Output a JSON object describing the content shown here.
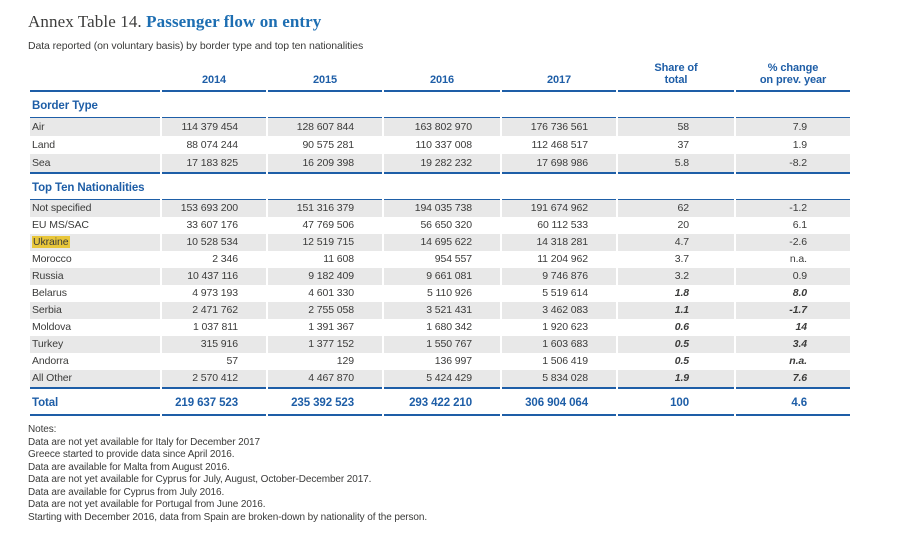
{
  "header": {
    "title_prefix": "Annex Table 14.",
    "title_main": "Passenger flow on entry",
    "subtitle": "Data reported (on voluntary basis) by border type and top ten nationalities"
  },
  "table": {
    "year_columns": [
      "2014",
      "2015",
      "2016",
      "2017"
    ],
    "share_header": {
      "line1": "Share of",
      "line2": "total"
    },
    "change_header": {
      "line1": "% change",
      "line2": "on prev. year"
    },
    "sections": [
      {
        "title": "Border Type",
        "rows": [
          {
            "label": "Air",
            "values": [
              "114 379 454",
              "128 607 844",
              "163 802 970",
              "176 736 561"
            ],
            "share": "58",
            "change": "7.9"
          },
          {
            "label": "Land",
            "values": [
              "88 074 244",
              "90 575 281",
              "110 337 008",
              "112 468 517"
            ],
            "share": "37",
            "change": "1.9"
          },
          {
            "label": "Sea",
            "values": [
              "17 183 825",
              "16 209 398",
              "19 282 232",
              "17 698 986"
            ],
            "share": "5.8",
            "change": "-8.2"
          }
        ]
      },
      {
        "title": "Top Ten Nationalities",
        "rows": [
          {
            "label": "Not specified",
            "values": [
              "153 693 200",
              "151 316 379",
              "194 035 738",
              "191 674 962"
            ],
            "share": "62",
            "change": "-1.2"
          },
          {
            "label": "EU MS/SAC",
            "values": [
              "33 607 176",
              "47 769 506",
              "56 650 320",
              "60 112 533"
            ],
            "share": "20",
            "change": "6.1"
          },
          {
            "label": "Ukraine",
            "values": [
              "10 528 534",
              "12 519 715",
              "14 695 622",
              "14 318 281"
            ],
            "share": "4.7",
            "change": "-2.6",
            "highlight": true
          },
          {
            "label": "Morocco",
            "values": [
              "2 346",
              "11 608",
              "954 557",
              "11 204 962"
            ],
            "share": "3.7",
            "change": "n.a."
          },
          {
            "label": "Russia",
            "values": [
              "10 437 116",
              "9 182 409",
              "9 661 081",
              "9 746 876"
            ],
            "share": "3.2",
            "change": "0.9"
          },
          {
            "label": "Belarus",
            "values": [
              "4 973 193",
              "4 601 330",
              "5 110 926",
              "5 519 614"
            ],
            "share": "1.8",
            "change": "8.0",
            "em": true
          },
          {
            "label": "Serbia",
            "values": [
              "2 471 762",
              "2 755 058",
              "3 521 431",
              "3 462 083"
            ],
            "share": "1.1",
            "change": "-1.7",
            "em": true
          },
          {
            "label": "Moldova",
            "values": [
              "1 037 811",
              "1 391 367",
              "1 680 342",
              "1 920 623"
            ],
            "share": "0.6",
            "change": "14",
            "em": true
          },
          {
            "label": "Turkey",
            "values": [
              "315 916",
              "1 377 152",
              "1 550 767",
              "1 603 683"
            ],
            "share": "0.5",
            "change": "3.4",
            "em": true
          },
          {
            "label": "Andorra",
            "values": [
              "57",
              "129",
              "136 997",
              "1 506 419"
            ],
            "share": "0.5",
            "change": "n.a.",
            "em": true
          },
          {
            "label": "All Other",
            "values": [
              "2 570 412",
              "4 467 870",
              "5 424 429",
              "5 834 028"
            ],
            "share": "1.9",
            "change": "7.6",
            "em": true
          }
        ]
      }
    ],
    "total": {
      "label": "Total",
      "values": [
        "219 637 523",
        "235 392 523",
        "293 422 210",
        "306 904 064"
      ],
      "share": "100",
      "change": "4.6"
    }
  },
  "notes": {
    "heading": "Notes:",
    "lines": [
      "Data are not yet available for Italy for December 2017",
      "Greece started to provide data since April 2016.",
      "Data are available for Malta from August 2016.",
      "Data are not yet available for Cyprus for July, August, October-December 2017.",
      "Data are available for Cyprus from July 2016.",
      "Data are not yet available for Portugal from June 2016.",
      "Starting with December 2016, data from Spain are broken-down by nationality of the person."
    ]
  },
  "colors": {
    "table_blue": "#1e5ea7",
    "title_blue": "#1d6eb2",
    "text_dark": "#3b3b3a",
    "row_shade_gray": "#e8e8e8",
    "highlight_yellow": "#e8c63a"
  }
}
